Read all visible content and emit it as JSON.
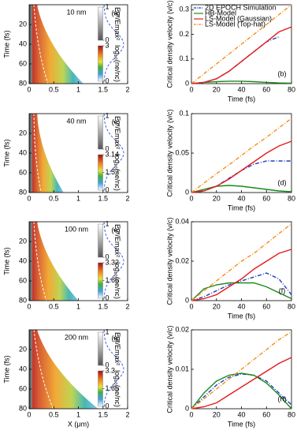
{
  "chart_data": [
    {
      "type": "heatmap",
      "title": "10 nm",
      "panel_label": "(a)",
      "y_label": "Time (fs)",
      "xlim": [
        0,
        2
      ],
      "xticks": [
        0,
        0.5,
        1,
        1.5,
        2
      ],
      "ylim": [
        80,
        0
      ],
      "yticks": [
        20,
        40,
        60,
        80
      ],
      "colorbar_top": {
        "label": "Ey²/Emax²",
        "lim": [
          0,
          1
        ],
        "ticks": [
          0,
          1
        ]
      },
      "colorbar_bottom": {
        "label": "log₁₀(ne/nc)",
        "lim": [
          0,
          3
        ],
        "ticks": [
          0,
          3
        ]
      }
    },
    {
      "type": "line",
      "panel_label": "(b)",
      "x_label": "Time (fs)",
      "y_label": "Critical density velocity (v/c)",
      "x": [
        0,
        10,
        20,
        30,
        40,
        50,
        60,
        70,
        80
      ],
      "xlim": [
        0,
        80
      ],
      "xticks": [
        0,
        20,
        40,
        60,
        80
      ],
      "ylim": [
        0,
        0.32
      ],
      "yticks": [
        0,
        0.1,
        0.2,
        0.3
      ],
      "legend": "upper left",
      "series": [
        {
          "name": "2D EPOCH Simulation",
          "color": "#1f3fbf",
          "style": "dashdot",
          "values": [
            0,
            0.005,
            0.02,
            0.05,
            0.09,
            0.13,
            0.17,
            0.19,
            null
          ]
        },
        {
          "name": "HB-Model",
          "color": "#1a8a1a",
          "style": "solid",
          "values": [
            0,
            0.005,
            0.008,
            0.01,
            0.01,
            0.008,
            0.005,
            0.003,
            0.002
          ]
        },
        {
          "name": "LS-Model (Gaussian)",
          "color": "#e41a1c",
          "style": "solid",
          "values": [
            0,
            0.005,
            0.02,
            0.05,
            0.09,
            0.13,
            0.17,
            0.21,
            0.23
          ]
        },
        {
          "name": "LS-Model (Top-hat)",
          "color": "#f28e1c",
          "style": "dashdot",
          "values": [
            0,
            0.04,
            0.08,
            0.12,
            0.16,
            0.2,
            0.24,
            0.28,
            0.32
          ]
        }
      ]
    },
    {
      "type": "heatmap",
      "title": "40 nm",
      "panel_label": "(c)",
      "y_label": "Time (fs)",
      "xlim": [
        0,
        2
      ],
      "xticks": [
        0,
        0.5,
        1,
        1.5,
        2
      ],
      "ylim": [
        80,
        0
      ],
      "yticks": [
        20,
        40,
        60,
        80
      ],
      "colorbar_top": {
        "label": "Ey²/Emax²",
        "lim": [
          0,
          1
        ],
        "ticks": [
          0,
          1
        ]
      },
      "colorbar_bottom": {
        "label": "log₁₀(ne/nc)",
        "lim": [
          0,
          3.14
        ],
        "ticks": [
          0,
          1.57,
          3.14
        ]
      }
    },
    {
      "type": "line",
      "panel_label": "(d)",
      "x_label": "Time (fs)",
      "y_label": "Critical density velocity (v/c)",
      "x": [
        0,
        10,
        20,
        30,
        40,
        50,
        60,
        70,
        80
      ],
      "xlim": [
        0,
        80
      ],
      "xticks": [
        0,
        20,
        40,
        60,
        80
      ],
      "ylim": [
        0,
        0.1
      ],
      "yticks": [
        0,
        0.05,
        0.1
      ],
      "series": [
        {
          "color": "#1f3fbf",
          "style": "dashdot",
          "values": [
            0,
            0.002,
            0.008,
            0.018,
            0.028,
            0.036,
            0.04,
            0.04,
            0.04
          ]
        },
        {
          "color": "#1a8a1a",
          "style": "solid",
          "values": [
            0,
            0.004,
            0.008,
            0.009,
            0.008,
            0.006,
            0.004,
            0.002,
            0.001
          ]
        },
        {
          "color": "#e41a1c",
          "style": "solid",
          "values": [
            0,
            0.002,
            0.008,
            0.017,
            0.028,
            0.039,
            0.05,
            0.059,
            0.065
          ]
        },
        {
          "color": "#f28e1c",
          "style": "dashdot",
          "values": [
            0,
            0.012,
            0.024,
            0.035,
            0.047,
            0.059,
            0.07,
            0.082,
            0.094
          ]
        }
      ]
    },
    {
      "type": "heatmap",
      "title": "100 nm",
      "panel_label": "(e)",
      "y_label": "Time (fs)",
      "xlim": [
        0,
        2
      ],
      "xticks": [
        0,
        0.5,
        1,
        1.5,
        2
      ],
      "ylim": [
        80,
        0
      ],
      "yticks": [
        20,
        40,
        60,
        80
      ],
      "colorbar_top": {
        "label": "Ey²/Emax²",
        "lim": [
          0,
          1
        ],
        "ticks": [
          0,
          1
        ]
      },
      "colorbar_bottom": {
        "label": "log₁₀(ne/nc)",
        "lim": [
          0,
          3.32
        ],
        "ticks": [
          0,
          1.66,
          3.32
        ]
      }
    },
    {
      "type": "line",
      "panel_label": "(f)",
      "x_label": "Time (fs)",
      "y_label": "Critical density velocity (v/c)",
      "x": [
        0,
        10,
        20,
        30,
        40,
        50,
        60,
        70,
        80
      ],
      "xlim": [
        0,
        80
      ],
      "xticks": [
        0,
        20,
        40,
        60,
        80
      ],
      "ylim": [
        0,
        0.04
      ],
      "yticks": [
        0,
        0.02,
        0.04
      ],
      "series": [
        {
          "color": "#1f3fbf",
          "style": "dashdot",
          "values": [
            0,
            0.002,
            0.005,
            0.008,
            0.01,
            0.012,
            0.014,
            0.011,
            0.003
          ]
        },
        {
          "color": "#1a8a1a",
          "style": "solid",
          "values": [
            0,
            0.006,
            0.008,
            0.009,
            0.009,
            0.009,
            0.007,
            0.004,
            0.001
          ]
        },
        {
          "color": "#e41a1c",
          "style": "solid",
          "values": [
            0,
            0.001,
            0.003,
            0.007,
            0.011,
            0.016,
            0.02,
            0.024,
            0.026
          ]
        },
        {
          "color": "#f28e1c",
          "style": "dashdot",
          "values": [
            0,
            0.005,
            0.01,
            0.015,
            0.02,
            0.024,
            0.029,
            0.034,
            0.039
          ]
        }
      ]
    },
    {
      "type": "heatmap",
      "title": "200 nm",
      "panel_label": "(g)",
      "x_label": "X (μm)",
      "y_label": "Time (fs)",
      "xlim": [
        0,
        2
      ],
      "xticks": [
        0,
        0.5,
        1,
        1.5,
        2
      ],
      "ylim": [
        80,
        0
      ],
      "yticks": [
        20,
        40,
        60,
        80
      ],
      "colorbar_top": {
        "label": "Ey²/Emax²",
        "lim": [
          0,
          1
        ],
        "ticks": [
          0,
          1
        ]
      },
      "colorbar_bottom": {
        "label": "log₁₀(ne/nc)",
        "lim": [
          0,
          3.3
        ],
        "ticks": [
          0,
          1.65,
          3.3
        ]
      }
    },
    {
      "type": "line",
      "panel_label": "(h)",
      "x_label": "Time (fs)",
      "y_label": "Critical density velocity (v/c)",
      "x": [
        0,
        10,
        20,
        30,
        40,
        50,
        60,
        70,
        80
      ],
      "xlim": [
        0,
        80
      ],
      "xticks": [
        0,
        20,
        40,
        60,
        80
      ],
      "ylim": [
        0,
        0.02
      ],
      "yticks": [
        0,
        0.01,
        0.02
      ],
      "series": [
        {
          "color": "#1f3fbf",
          "style": "dashdot",
          "values": [
            0,
            0.003,
            0.006,
            0.008,
            0.0088,
            0.0085,
            0.007,
            0.004,
            0.001
          ]
        },
        {
          "color": "#1a8a1a",
          "style": "solid",
          "values": [
            0,
            0.004,
            0.007,
            0.0085,
            0.009,
            0.0085,
            0.0065,
            0.0035,
            0
          ]
        },
        {
          "color": "#e41a1c",
          "style": "solid",
          "values": [
            0,
            0.0005,
            0.0015,
            0.0035,
            0.0055,
            0.0075,
            0.0095,
            0.0115,
            0.013
          ]
        },
        {
          "color": "#f28e1c",
          "style": "dashdot",
          "values": [
            0,
            0.0025,
            0.005,
            0.0075,
            0.01,
            0.0125,
            0.015,
            0.0175,
            0.0195
          ]
        }
      ]
    }
  ]
}
